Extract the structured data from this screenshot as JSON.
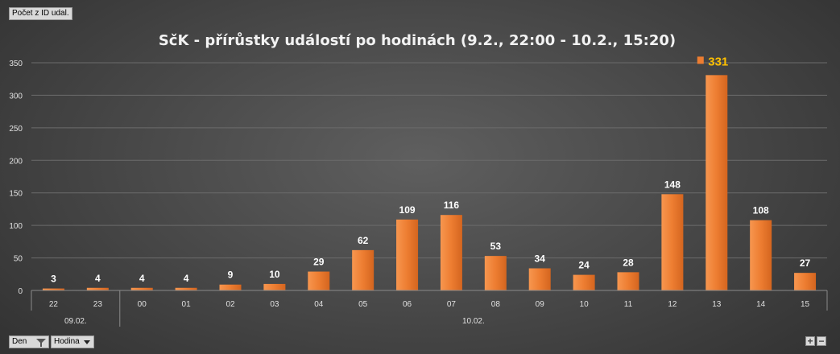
{
  "field_buttons": {
    "count_label": "Počet z ID udal.",
    "day_label": "Den",
    "hour_label": "Hodina"
  },
  "zoom": {
    "plus": "+",
    "minus": "−"
  },
  "colors": {
    "bar": "#ed7d31",
    "highlight_label": "#ffc000",
    "label": "#ffffff"
  },
  "icons": [
    "filter-icon",
    "dropdown-arrow-icon",
    "plus-icon",
    "minus-icon"
  ],
  "chart_data": {
    "type": "bar",
    "title": "SčK - přírůstky událostí po hodinách (9.2., 22:00 - 10.2., 15:20)",
    "categories": [
      "22",
      "23",
      "00",
      "01",
      "02",
      "03",
      "04",
      "05",
      "06",
      "07",
      "08",
      "09",
      "10",
      "11",
      "12",
      "13",
      "14",
      "15"
    ],
    "groups": [
      {
        "label": "09.02.",
        "count": 2
      },
      {
        "label": "10.02.",
        "count": 16
      }
    ],
    "values": [
      3,
      4,
      4,
      4,
      9,
      10,
      29,
      62,
      109,
      116,
      53,
      34,
      24,
      28,
      148,
      331,
      108,
      27
    ],
    "highlight_index": 15,
    "ylim": [
      0,
      350
    ],
    "yticks": [
      0,
      50,
      100,
      150,
      200,
      250,
      300,
      350
    ],
    "grid": true,
    "legend": "none"
  }
}
